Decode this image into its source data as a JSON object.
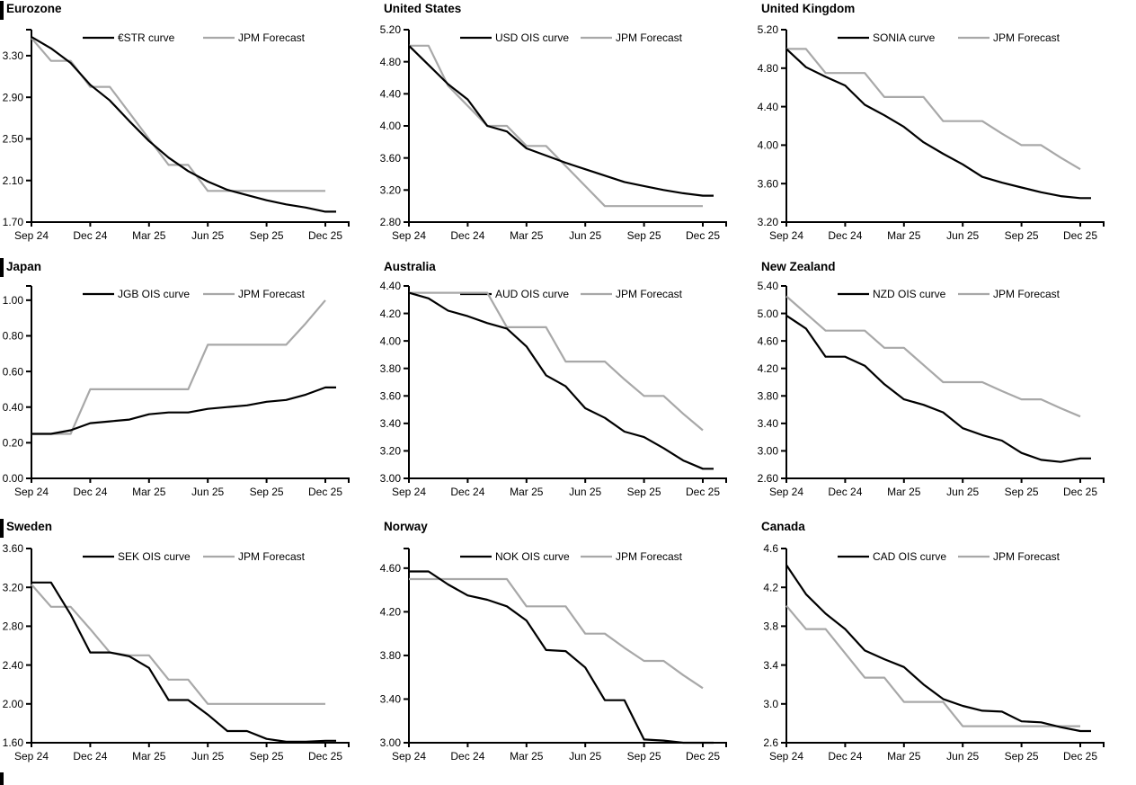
{
  "page": {
    "background": "#ffffff",
    "line_black": "#000000",
    "line_gray": "#a8a8a8"
  },
  "chart_data": [
    {
      "id": "eurozone",
      "type": "line",
      "title": "Eurozone",
      "x_tick_labels": [
        "Sep 24",
        "Dec 24",
        "Mar 25",
        "Jun 25",
        "Sep 25",
        "Dec 25"
      ],
      "y_tick_labels": [
        "1.70",
        "2.10",
        "2.50",
        "2.90",
        "3.30"
      ],
      "ylim": [
        1.7,
        3.55
      ],
      "legend_position": "top-center",
      "grid": false,
      "series": [
        {
          "name": "€STR curve",
          "color": "black",
          "values": [
            3.48,
            3.37,
            3.23,
            3.02,
            2.87,
            2.67,
            2.48,
            2.32,
            2.19,
            2.09,
            2.01,
            1.96,
            1.91,
            1.87,
            1.84,
            1.8
          ]
        },
        {
          "name": "JPM Forecast",
          "color": "gray",
          "values": [
            3.47,
            3.25,
            3.25,
            3.0,
            3.0,
            2.75,
            2.5,
            2.25,
            2.25,
            2.0,
            2.0,
            2.0,
            2.0,
            2.0,
            2.0,
            2.0
          ]
        }
      ]
    },
    {
      "id": "united-states",
      "type": "line",
      "title": "United States",
      "x_tick_labels": [
        "Sep 24",
        "Dec 24",
        "Mar 25",
        "Jun 25",
        "Sep 25",
        "Dec 25"
      ],
      "y_tick_labels": [
        "2.80",
        "3.20",
        "3.60",
        "4.00",
        "4.40",
        "4.80",
        "5.20"
      ],
      "ylim": [
        2.8,
        5.2
      ],
      "legend_position": "top-center",
      "grid": false,
      "series": [
        {
          "name": "USD OIS curve",
          "color": "black",
          "values": [
            5.0,
            4.76,
            4.52,
            4.33,
            4.0,
            3.93,
            3.72,
            3.63,
            3.54,
            3.46,
            3.38,
            3.3,
            3.25,
            3.2,
            3.16,
            3.13
          ]
        },
        {
          "name": "JPM Forecast",
          "color": "gray",
          "values": [
            5.0,
            5.0,
            4.5,
            4.25,
            4.0,
            4.0,
            3.75,
            3.75,
            3.5,
            3.25,
            3.0,
            3.0,
            3.0,
            3.0,
            3.0,
            3.0
          ]
        }
      ]
    },
    {
      "id": "united-kingdom",
      "type": "line",
      "title": "United Kingdom",
      "x_tick_labels": [
        "Sep 24",
        "Dec 24",
        "Mar 25",
        "Jun 25",
        "Sep 25",
        "Dec 25"
      ],
      "y_tick_labels": [
        "3.20",
        "3.60",
        "4.00",
        "4.40",
        "4.80",
        "5.20"
      ],
      "ylim": [
        3.2,
        5.2
      ],
      "legend_position": "top-center",
      "grid": false,
      "series": [
        {
          "name": "SONIA curve",
          "color": "black",
          "values": [
            5.0,
            4.81,
            4.71,
            4.62,
            4.42,
            4.31,
            4.19,
            4.03,
            3.91,
            3.8,
            3.67,
            3.61,
            3.56,
            3.51,
            3.47,
            3.45
          ]
        },
        {
          "name": "JPM Forecast",
          "color": "gray",
          "values": [
            5.0,
            5.0,
            4.75,
            4.75,
            4.75,
            4.5,
            4.5,
            4.5,
            4.25,
            4.25,
            4.25,
            4.12,
            4.0,
            4.0,
            3.87,
            3.75
          ]
        }
      ]
    },
    {
      "id": "japan",
      "type": "line",
      "title": "Japan",
      "x_tick_labels": [
        "Sep 24",
        "Dec 24",
        "Mar 25",
        "Jun 25",
        "Sep 25",
        "Dec 25"
      ],
      "y_tick_labels": [
        "0.00",
        "0.20",
        "0.40",
        "0.60",
        "0.80",
        "1.00"
      ],
      "ylim": [
        0.0,
        1.08
      ],
      "legend_position": "top-center",
      "grid": false,
      "series": [
        {
          "name": "JGB OIS curve",
          "color": "black",
          "values": [
            0.25,
            0.25,
            0.27,
            0.31,
            0.32,
            0.33,
            0.36,
            0.37,
            0.37,
            0.39,
            0.4,
            0.41,
            0.43,
            0.44,
            0.47,
            0.51
          ]
        },
        {
          "name": "JPM Forecast",
          "color": "gray",
          "values": [
            0.25,
            0.25,
            0.25,
            0.5,
            0.5,
            0.5,
            0.5,
            0.5,
            0.5,
            0.75,
            0.75,
            0.75,
            0.75,
            0.75,
            0.87,
            1.0
          ]
        }
      ]
    },
    {
      "id": "australia",
      "type": "line",
      "title": "Australia",
      "x_tick_labels": [
        "Sep 24",
        "Dec 24",
        "Mar 25",
        "Jun 25",
        "Sep 25",
        "Dec 25"
      ],
      "y_tick_labels": [
        "3.00",
        "3.20",
        "3.40",
        "3.60",
        "3.80",
        "4.00",
        "4.20",
        "4.40"
      ],
      "ylim": [
        3.0,
        4.4
      ],
      "legend_position": "top-center",
      "grid": false,
      "series": [
        {
          "name": "AUD OIS curve",
          "color": "black",
          "values": [
            4.35,
            4.31,
            4.22,
            4.18,
            4.13,
            4.09,
            3.96,
            3.75,
            3.67,
            3.51,
            3.44,
            3.34,
            3.3,
            3.22,
            3.13,
            3.07
          ]
        },
        {
          "name": "JPM Forecast",
          "color": "gray",
          "values": [
            4.35,
            4.35,
            4.35,
            4.35,
            4.35,
            4.1,
            4.1,
            4.1,
            3.85,
            3.85,
            3.85,
            3.72,
            3.6,
            3.6,
            3.47,
            3.35
          ]
        }
      ]
    },
    {
      "id": "new-zealand",
      "type": "line",
      "title": "New Zealand",
      "x_tick_labels": [
        "Sep 24",
        "Dec 24",
        "Mar 25",
        "Jun 25",
        "Sep 25",
        "Dec 25"
      ],
      "y_tick_labels": [
        "2.60",
        "3.00",
        "3.40",
        "3.80",
        "4.20",
        "4.60",
        "5.00",
        "5.40"
      ],
      "ylim": [
        2.6,
        5.4
      ],
      "legend_position": "top-center",
      "grid": false,
      "series": [
        {
          "name": "NZD OIS curve",
          "color": "black",
          "values": [
            4.97,
            4.78,
            4.37,
            4.37,
            4.24,
            3.97,
            3.75,
            3.67,
            3.56,
            3.33,
            3.23,
            3.15,
            2.97,
            2.87,
            2.84,
            2.89
          ]
        },
        {
          "name": "JPM Forecast",
          "color": "gray",
          "values": [
            5.25,
            5.0,
            4.75,
            4.75,
            4.75,
            4.5,
            4.5,
            4.25,
            4.0,
            4.0,
            4.0,
            3.87,
            3.75,
            3.75,
            3.62,
            3.5
          ]
        }
      ]
    },
    {
      "id": "sweden",
      "type": "line",
      "title": "Sweden",
      "x_tick_labels": [
        "Sep 24",
        "Dec 24",
        "Mar 25",
        "Jun 25",
        "Sep 25",
        "Dec 25"
      ],
      "y_tick_labels": [
        "1.60",
        "2.00",
        "2.40",
        "2.80",
        "3.20",
        "3.60"
      ],
      "ylim": [
        1.6,
        3.6
      ],
      "legend_position": "top-center",
      "grid": false,
      "series": [
        {
          "name": "SEK OIS curve",
          "color": "black",
          "values": [
            3.25,
            3.25,
            2.92,
            2.53,
            2.53,
            2.49,
            2.37,
            2.04,
            2.04,
            1.89,
            1.72,
            1.72,
            1.64,
            1.61,
            1.61,
            1.62
          ]
        },
        {
          "name": "JPM Forecast",
          "color": "gray",
          "values": [
            3.23,
            3.0,
            3.0,
            2.77,
            2.53,
            2.5,
            2.5,
            2.25,
            2.25,
            2.0,
            2.0,
            2.0,
            2.0,
            2.0,
            2.0,
            2.0
          ]
        }
      ]
    },
    {
      "id": "norway",
      "type": "line",
      "title": "Norway",
      "x_tick_labels": [
        "Sep 24",
        "Dec 24",
        "Mar 25",
        "Jun 25",
        "Sep 25",
        "Dec 25"
      ],
      "y_tick_labels": [
        "3.00",
        "3.40",
        "3.80",
        "4.20",
        "4.60"
      ],
      "ylim": [
        3.0,
        4.78
      ],
      "legend_position": "top-center",
      "grid": false,
      "series": [
        {
          "name": "NOK OIS curve",
          "color": "black",
          "values": [
            4.57,
            4.57,
            4.45,
            4.35,
            4.31,
            4.25,
            4.12,
            3.85,
            3.84,
            3.69,
            3.39,
            3.39,
            3.03,
            3.02,
            3.0,
            3.0
          ]
        },
        {
          "name": "JPM Forecast",
          "color": "gray",
          "values": [
            4.5,
            4.5,
            4.5,
            4.5,
            4.5,
            4.5,
            4.25,
            4.25,
            4.25,
            4.0,
            4.0,
            3.87,
            3.75,
            3.75,
            3.62,
            3.5
          ]
        }
      ]
    },
    {
      "id": "canada",
      "type": "line",
      "title": "Canada",
      "x_tick_labels": [
        "Sep 24",
        "Dec 24",
        "Mar 25",
        "Jun 25",
        "Sep 25",
        "Dec 25"
      ],
      "y_tick_labels": [
        "2.6",
        "3.0",
        "3.4",
        "3.8",
        "4.2",
        "4.6"
      ],
      "ylim": [
        2.6,
        4.6
      ],
      "legend_position": "top-center",
      "grid": false,
      "series": [
        {
          "name": "CAD OIS curve",
          "color": "black",
          "values": [
            4.43,
            4.13,
            3.93,
            3.77,
            3.55,
            3.46,
            3.38,
            3.2,
            3.05,
            2.98,
            2.93,
            2.92,
            2.82,
            2.81,
            2.76,
            2.72
          ]
        },
        {
          "name": "JPM Forecast",
          "color": "gray",
          "values": [
            4.01,
            3.77,
            3.77,
            3.52,
            3.27,
            3.27,
            3.02,
            3.02,
            3.02,
            2.77,
            2.77,
            2.77,
            2.77,
            2.77,
            2.77,
            2.77
          ]
        }
      ]
    }
  ]
}
